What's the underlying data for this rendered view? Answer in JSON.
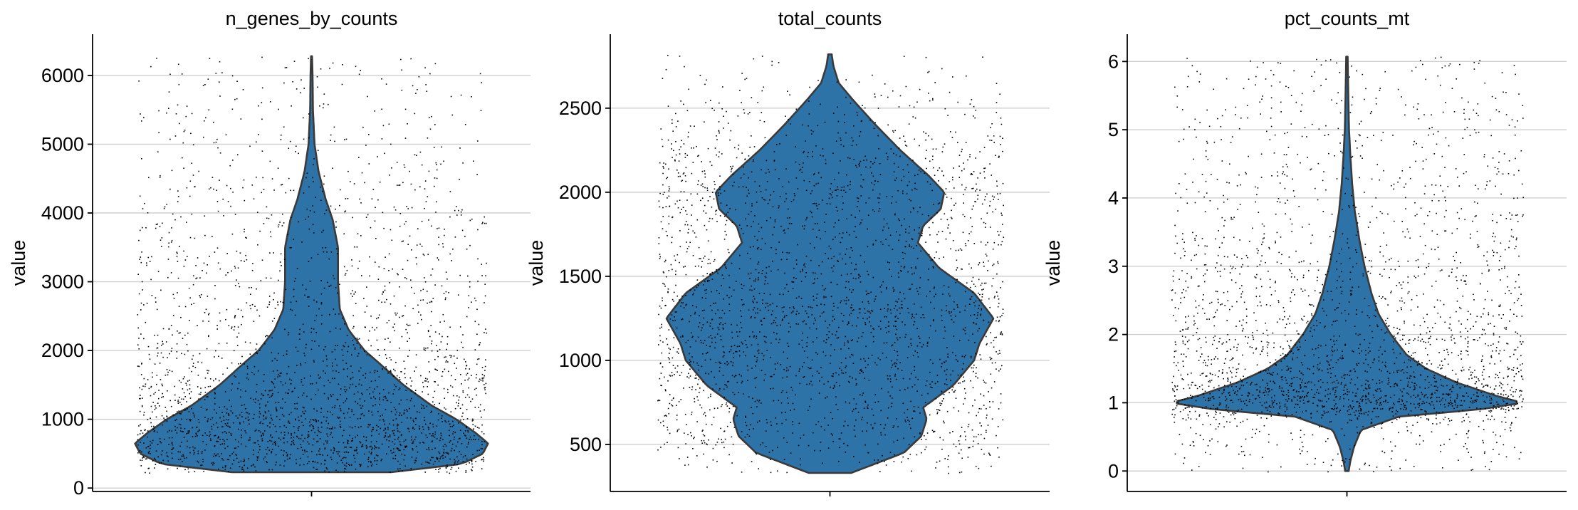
{
  "chart_data": [
    {
      "type": "violin",
      "title": "n_genes_by_counts",
      "ylabel": "value",
      "ylim": [
        -50,
        6600
      ],
      "yticks": [
        0,
        1000,
        2000,
        3000,
        4000,
        5000,
        6000
      ],
      "ytick_labels": [
        "0",
        "1000",
        "2000",
        "3000",
        "4000",
        "5000",
        "6000"
      ],
      "grid": "horizontal",
      "color": "#2e73a7",
      "data_range": [
        230,
        6280
      ],
      "density_profile": [
        [
          230,
          0.45
        ],
        [
          350,
          0.85
        ],
        [
          500,
          0.97
        ],
        [
          650,
          1.0
        ],
        [
          800,
          0.93
        ],
        [
          1000,
          0.82
        ],
        [
          1200,
          0.68
        ],
        [
          1500,
          0.52
        ],
        [
          1800,
          0.39
        ],
        [
          2000,
          0.3
        ],
        [
          2300,
          0.21
        ],
        [
          2600,
          0.16
        ],
        [
          3000,
          0.15
        ],
        [
          3500,
          0.15
        ],
        [
          3900,
          0.12
        ],
        [
          4200,
          0.08
        ],
        [
          4600,
          0.04
        ],
        [
          5000,
          0.017
        ],
        [
          5500,
          0.008
        ],
        [
          6000,
          0.006
        ],
        [
          6280,
          0.003
        ]
      ],
      "jitter_points": {
        "count": 2600,
        "min": 250,
        "max": 6300
      }
    },
    {
      "type": "violin",
      "title": "total_counts",
      "ylabel": "value",
      "ylim": [
        220,
        2940
      ],
      "yticks": [
        500,
        1000,
        1500,
        2000,
        2500
      ],
      "ytick_labels": [
        "500",
        "1000",
        "1500",
        "2000",
        "2500"
      ],
      "grid": "horizontal",
      "color": "#2e73a7",
      "data_range": [
        330,
        2820
      ],
      "density_profile": [
        [
          330,
          0.12
        ],
        [
          450,
          0.42
        ],
        [
          550,
          0.52
        ],
        [
          650,
          0.55
        ],
        [
          720,
          0.53
        ],
        [
          850,
          0.7
        ],
        [
          1000,
          0.82
        ],
        [
          1100,
          0.85
        ],
        [
          1250,
          0.93
        ],
        [
          1400,
          0.82
        ],
        [
          1550,
          0.62
        ],
        [
          1700,
          0.5
        ],
        [
          1800,
          0.53
        ],
        [
          1900,
          0.63
        ],
        [
          2000,
          0.65
        ],
        [
          2100,
          0.56
        ],
        [
          2250,
          0.4
        ],
        [
          2400,
          0.26
        ],
        [
          2550,
          0.13
        ],
        [
          2650,
          0.05
        ],
        [
          2750,
          0.02
        ],
        [
          2820,
          0.01
        ]
      ],
      "jitter_points": {
        "count": 2600,
        "min": 330,
        "max": 2830
      }
    },
    {
      "type": "violin",
      "title": "pct_counts_mt",
      "ylabel": "value",
      "ylim": [
        -0.3,
        6.4
      ],
      "yticks": [
        0,
        1,
        2,
        3,
        4,
        5,
        6
      ],
      "ytick_labels": [
        "0",
        "1",
        "2",
        "3",
        "4",
        "5",
        "6"
      ],
      "grid": "horizontal",
      "color": "#2e73a7",
      "data_range": [
        0.0,
        6.07
      ],
      "density_profile": [
        [
          0.0,
          0.01
        ],
        [
          0.15,
          0.02
        ],
        [
          0.35,
          0.04
        ],
        [
          0.6,
          0.08
        ],
        [
          0.8,
          0.3
        ],
        [
          0.9,
          0.75
        ],
        [
          1.0,
          1.0
        ],
        [
          1.1,
          0.85
        ],
        [
          1.3,
          0.62
        ],
        [
          1.5,
          0.45
        ],
        [
          1.7,
          0.34
        ],
        [
          2.0,
          0.25
        ],
        [
          2.3,
          0.18
        ],
        [
          2.6,
          0.14
        ],
        [
          3.0,
          0.1
        ],
        [
          3.4,
          0.07
        ],
        [
          3.8,
          0.045
        ],
        [
          4.2,
          0.03
        ],
        [
          4.6,
          0.02
        ],
        [
          5.0,
          0.012
        ],
        [
          5.5,
          0.008
        ],
        [
          6.07,
          0.004
        ]
      ],
      "jitter_points": {
        "count": 2600,
        "min": 0.0,
        "max": 6.1
      }
    }
  ]
}
